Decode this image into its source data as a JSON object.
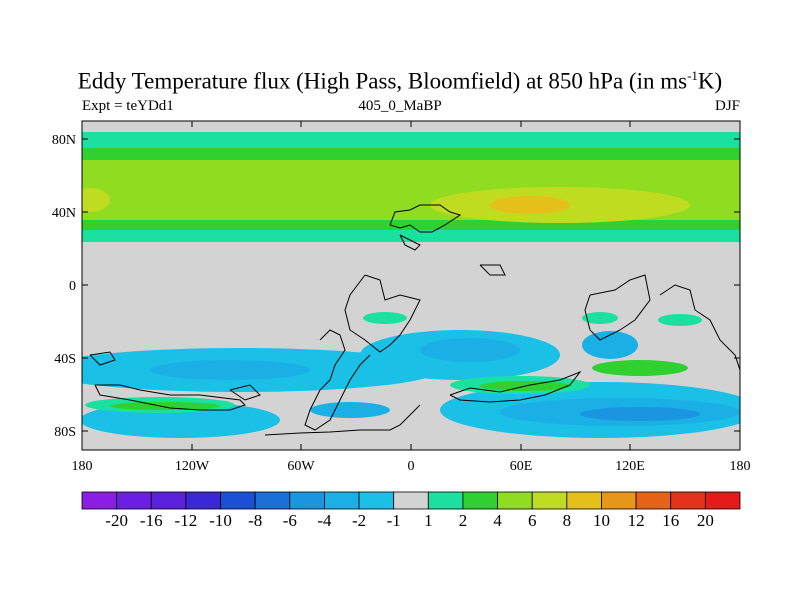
{
  "header": {
    "title_pre": "Eddy Temperature flux (High Pass, Bloomfield) at 850 hPa (in ms",
    "title_sup": "-1",
    "title_post": "K)",
    "left": "Expt = teYDd1",
    "center": "405_0_MaBP",
    "right": "DJF"
  },
  "map": {
    "lon_ticks": [
      "180",
      "120W",
      "60W",
      "0",
      "60E",
      "120E",
      "180"
    ],
    "lat_ticks": [
      "80N",
      "40N",
      "0",
      "40S",
      "80S"
    ],
    "background_color": "#d3d3d3"
  },
  "colorbar": {
    "labels": [
      "-20",
      "-16",
      "-12",
      "-10",
      "-8",
      "-6",
      "-4",
      "-2",
      "-1",
      "1",
      "2",
      "4",
      "6",
      "8",
      "10",
      "12",
      "16",
      "20"
    ],
    "colors": [
      "#8a1ee6",
      "#6a1ee6",
      "#5a20dc",
      "#3a28d8",
      "#1a50d8",
      "#1a70d8",
      "#1a96e0",
      "#1ab0e6",
      "#1ac0e6",
      "#d3d3d3",
      "#1ae0a0",
      "#30d030",
      "#90dc20",
      "#c0dc20",
      "#e6c01a",
      "#e6961a",
      "#e6641a",
      "#e6321a",
      "#e61a1a"
    ]
  }
}
